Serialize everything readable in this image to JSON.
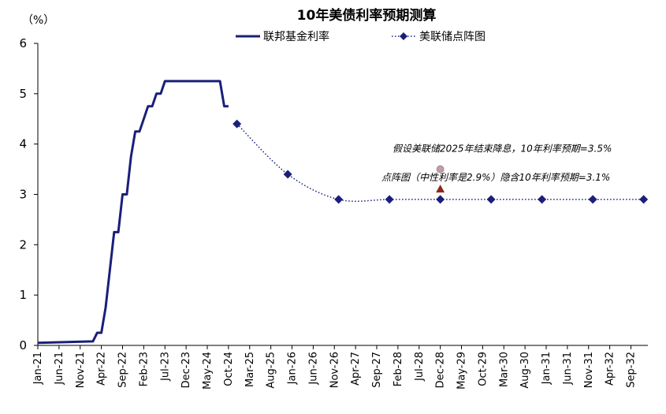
{
  "chart_data": {
    "type": "line",
    "title": "10年美债利率预期测算",
    "y_unit": "（%）",
    "ylim": [
      0,
      6
    ],
    "y_ticks": [
      0,
      1,
      2,
      3,
      4,
      5,
      6
    ],
    "x_tick_labels": [
      "Jan-21",
      "Jun-21",
      "Nov-21",
      "Apr-22",
      "Sep-22",
      "Feb-23",
      "Jul-23",
      "Dec-23",
      "May-24",
      "Oct-24",
      "Mar-25",
      "Aug-25",
      "Jan-26",
      "Jun-26",
      "Nov-26",
      "Apr-27",
      "Sep-27",
      "Feb-28",
      "Jul-28",
      "Dec-28",
      "May-29",
      "Oct-29",
      "Mar-30",
      "Aug-30",
      "Jan-31",
      "Jun-31",
      "Nov-31",
      "Apr-32",
      "Sep-32"
    ],
    "legend": {
      "placement": "top-center"
    },
    "series": [
      {
        "name": "联邦基金利率",
        "style": "solid",
        "color": "#1a1f7a",
        "points": [
          [
            "2021-01",
            0.05
          ],
          [
            "2022-02",
            0.08
          ],
          [
            "2022-03",
            0.25
          ],
          [
            "2022-04",
            0.25
          ],
          [
            "2022-05",
            0.75
          ],
          [
            "2022-06",
            1.5
          ],
          [
            "2022-07",
            2.25
          ],
          [
            "2022-08",
            2.25
          ],
          [
            "2022-09",
            3.0
          ],
          [
            "2022-10",
            3.0
          ],
          [
            "2022-11",
            3.75
          ],
          [
            "2022-12",
            4.25
          ],
          [
            "2023-01",
            4.25
          ],
          [
            "2023-02",
            4.5
          ],
          [
            "2023-03",
            4.75
          ],
          [
            "2023-04",
            4.75
          ],
          [
            "2023-05",
            5.0
          ],
          [
            "2023-06",
            5.0
          ],
          [
            "2023-07",
            5.25
          ],
          [
            "2024-08",
            5.25
          ],
          [
            "2024-09",
            4.75
          ],
          [
            "2024-10",
            4.75
          ]
        ]
      },
      {
        "name": "美联储点阵图",
        "style": "dotted",
        "color": "#1a1f7a",
        "points": [
          [
            "2024-12",
            4.4
          ],
          [
            "2025-12",
            3.4
          ],
          [
            "2026-12",
            2.9
          ],
          [
            "2027-12",
            2.9
          ],
          [
            "2028-12",
            2.9
          ],
          [
            "2029-12",
            2.9
          ],
          [
            "2030-12",
            2.9
          ],
          [
            "2031-12",
            2.9
          ],
          [
            "2032-12",
            2.9
          ]
        ]
      }
    ],
    "markers": [
      {
        "label": "假设美联储2025年结束降息，10年利率预期=3.5%",
        "x": "2028-12",
        "y": 3.5,
        "shape": "circle",
        "color": "#c0a0a8"
      },
      {
        "label": "点阵图（中性利率是2.9%）隐含10年利率预期=3.1%",
        "x": "2028-12",
        "y": 3.1,
        "shape": "triangle",
        "color": "#8b2a1a"
      }
    ]
  }
}
